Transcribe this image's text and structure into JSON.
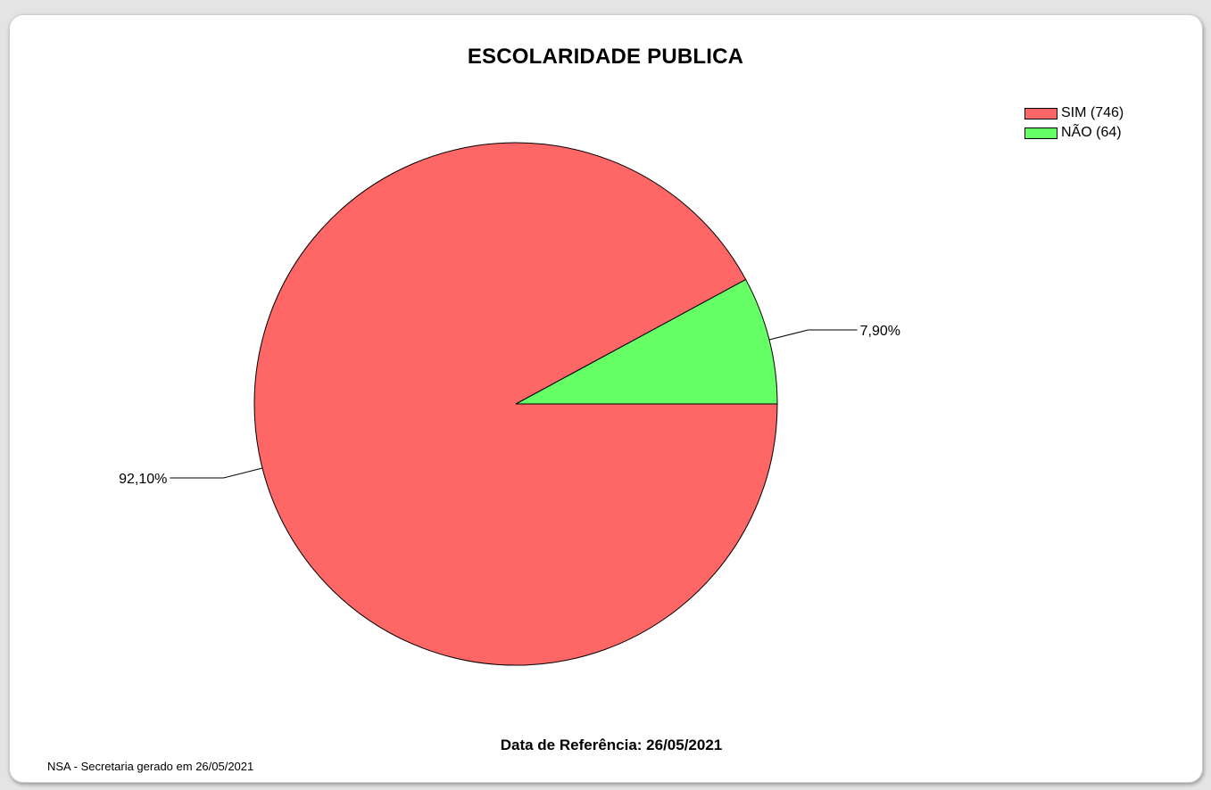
{
  "chart_data": {
    "type": "pie",
    "title": "ESCOLARIDADE PUBLICA",
    "legend_position": "top-right",
    "slices": [
      {
        "name": "SIM (746)",
        "value": 746,
        "percent_label": "92,10%",
        "color": "#ff6666"
      },
      {
        "name": "NÃO (64)",
        "value": 64,
        "percent_label": "7,90%",
        "color": "#66ff66"
      }
    ]
  },
  "footer": {
    "reference_date": "Data de Referência: 26/05/2021",
    "generated_note": "NSA - Secretaria gerado em 26/05/2021"
  }
}
